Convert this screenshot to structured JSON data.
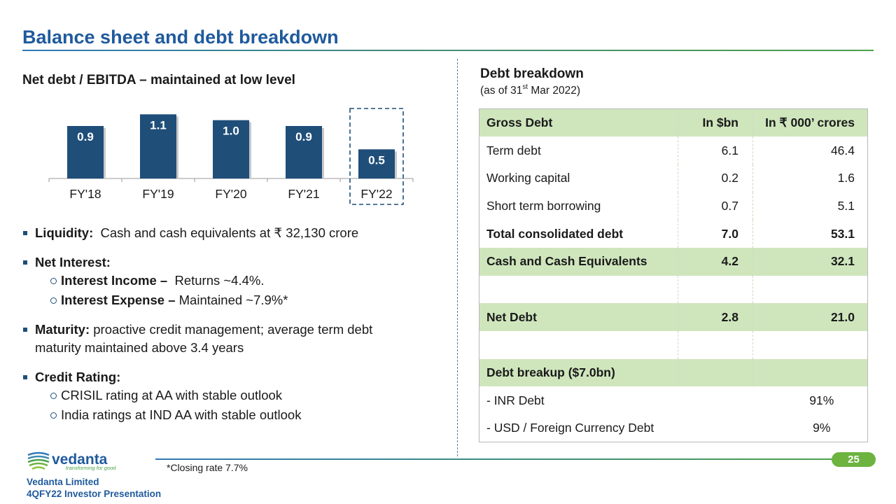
{
  "title": "Balance sheet and debt breakdown",
  "chart_title": "Net debt / EBITDA – maintained at low level",
  "chart_data": {
    "type": "bar",
    "title": "Net debt / EBITDA – maintained at low level",
    "categories": [
      "FY'18",
      "FY'19",
      "FY'20",
      "FY'21",
      "FY'22"
    ],
    "values": [
      0.9,
      1.1,
      1.0,
      0.9,
      0.5
    ],
    "labels": [
      "0.9",
      "1.1",
      "1.0",
      "0.9",
      "0.5"
    ],
    "highlighted": "FY'22",
    "ylim": [
      0,
      1.2
    ],
    "xlabel": "",
    "ylabel": ""
  },
  "bullets": {
    "liquidity_label": "Liquidity:",
    "liquidity_text": "Cash and cash equivalents at ₹ 32,130 crore",
    "interest_label": "Net Interest:",
    "income_label": "Interest Income –",
    "income_text": "Returns ~4.4%.",
    "expense_label": "Interest Expense –",
    "expense_text": "Maintained ~7.9%*",
    "maturity_label": "Maturity:",
    "maturity_text": "proactive credit management; average term debt maturity maintained above 3.4 years",
    "credit_label": "Credit Rating:",
    "crisil": "CRISIL rating at AA with stable outlook",
    "india": "India ratings at IND AA with stable outlook"
  },
  "debt": {
    "title": "Debt breakdown",
    "subtitle_pre": "(as of 31",
    "subtitle_sup": "st",
    "subtitle_post": " Mar 2022)",
    "headers": [
      "Gross Debt",
      "In $bn",
      "In ₹ 000’ crores"
    ],
    "rows": [
      [
        "Term debt",
        "6.1",
        "46.4"
      ],
      [
        "Working capital",
        "0.2",
        "1.6"
      ],
      [
        "Short term borrowing",
        "0.7",
        "5.1"
      ],
      [
        "Total consolidated debt",
        "7.0",
        "53.1"
      ],
      [
        "Cash and Cash Equivalents",
        "4.2",
        "32.1"
      ],
      [
        "Net Debt",
        "2.8",
        "21.0"
      ],
      [
        "Debt breakup ($7.0bn)"
      ],
      [
        "- INR Debt",
        "91%"
      ],
      [
        "- USD / Foreign Currency Debt",
        "9%"
      ]
    ]
  },
  "footer": {
    "note": "*Closing rate 7.7%",
    "page": "25",
    "logo_name": "vedanta",
    "logo_tagline": "transforming for good",
    "company": "Vedanta Limited",
    "presentation": "4QFY22 Investor Presentation"
  },
  "colors": {
    "bar": "#1f4e79",
    "accent": "#1f5a9c",
    "green": "#cfe6bd",
    "pill": "#6db33f"
  }
}
